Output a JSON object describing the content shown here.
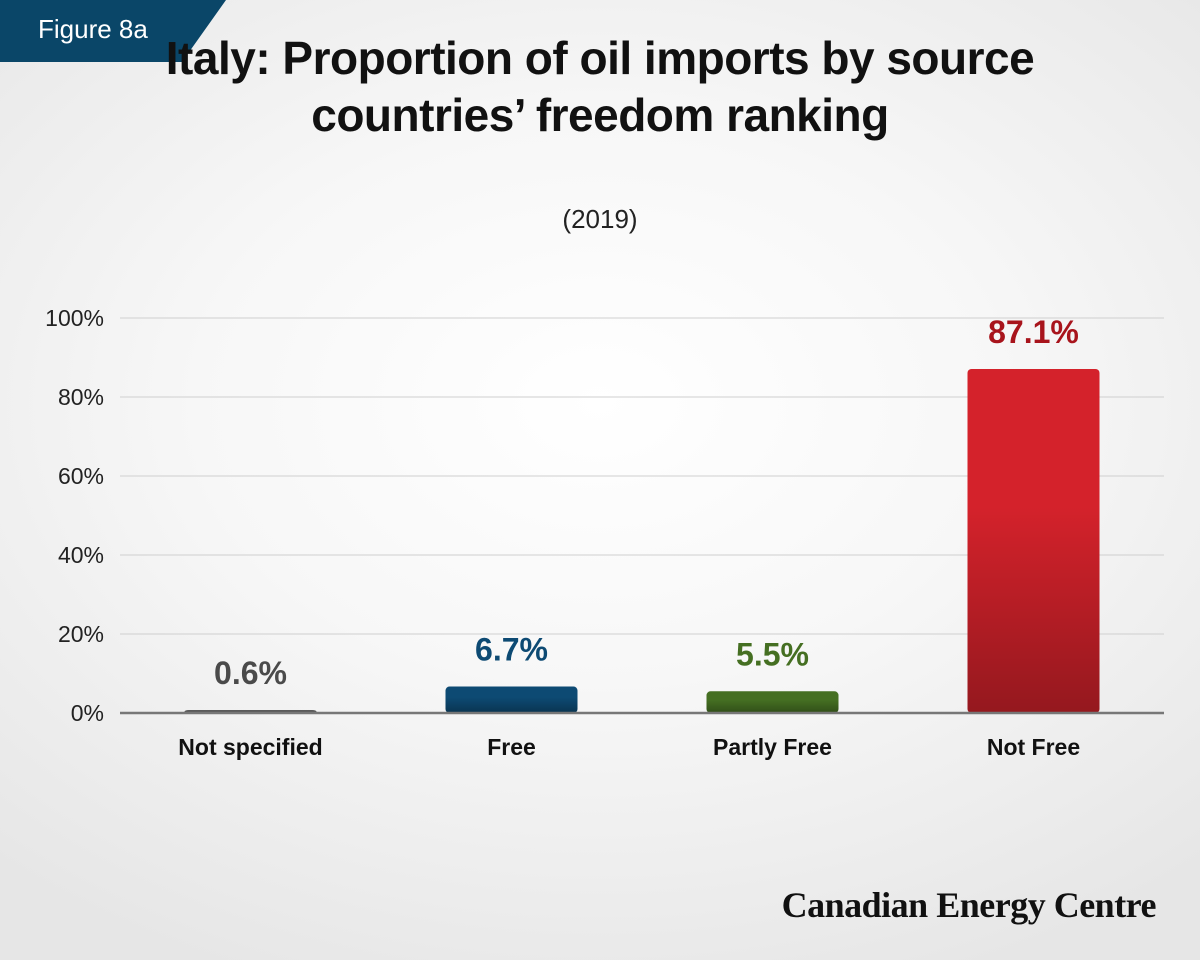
{
  "figure_label": "Figure 8a",
  "title": "Italy: Proportion of oil imports by source countries’ freedom ranking",
  "subtitle": "(2019)",
  "brand": "Canadian Energy Centre",
  "colors": {
    "badge": "#0a4668",
    "grid": "#cfcfcf",
    "axis": "#777777"
  },
  "chart_data": {
    "type": "bar",
    "categories": [
      "Not specified",
      "Free",
      "Partly Free",
      "Not Free"
    ],
    "values": [
      0.6,
      6.7,
      5.5,
      87.1
    ],
    "data_labels": [
      "0.6%",
      "6.7%",
      "5.5%",
      "87.1%"
    ],
    "bar_colors": [
      "#5a5a5a",
      "#0d4a73",
      "#456f22",
      "#d4222b"
    ],
    "label_colors": [
      "#4a4a4a",
      "#0d4a73",
      "#456f22",
      "#a8141c"
    ],
    "yticks": [
      0,
      20,
      40,
      60,
      80,
      100
    ],
    "ytick_labels": [
      "0%",
      "20%",
      "40%",
      "60%",
      "80%",
      "100%"
    ],
    "ylim": [
      0,
      100
    ],
    "grid": true,
    "legend": "none",
    "xlabel": "",
    "ylabel": ""
  }
}
